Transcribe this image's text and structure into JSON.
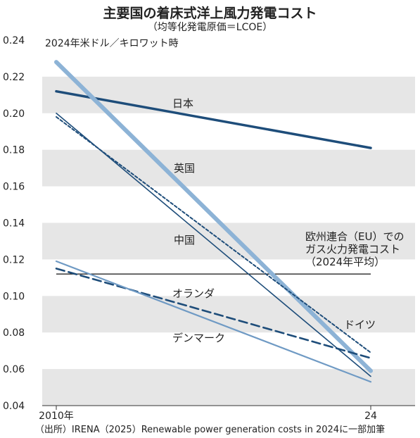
{
  "title": "主要国の着床式洋上風力発電コスト",
  "subtitle": "（均等化発電原価＝LCOE）",
  "source_note": "（出所）IRENA（2025）Renewable power generation costs in 2024に一部加筆",
  "chart_data": {
    "type": "line",
    "unit_label": "2024年米ドル／キロワット時",
    "x": [
      2010,
      2024
    ],
    "x_tick_labels": [
      "2010年",
      "24"
    ],
    "ylim": [
      0.04,
      0.24
    ],
    "y_ticks": [
      "0.04",
      "0.06",
      "0.08",
      "0.10",
      "0.12",
      "0.14",
      "0.16",
      "0.18",
      "0.20",
      "0.22",
      "0.24"
    ],
    "series": [
      {
        "name": "日本",
        "values": [
          0.212,
          0.181
        ],
        "color": "#1e4d7a",
        "style": "solid-thick"
      },
      {
        "name": "英国",
        "values": [
          0.228,
          0.059
        ],
        "color": "#8db3d6",
        "style": "solid-extra-thick"
      },
      {
        "name": "中国",
        "values": [
          0.2,
          0.056
        ],
        "color": "#1e4d7a",
        "style": "solid-thin"
      },
      {
        "name": "ドイツ",
        "values": [
          0.198,
          0.069
        ],
        "color": "#1e4d7a",
        "style": "dotted"
      },
      {
        "name": "オランダ",
        "values": [
          0.115,
          0.066
        ],
        "color": "#1e4d7a",
        "style": "dashed"
      },
      {
        "name": "デンマーク",
        "values": [
          0.119,
          0.053
        ],
        "color": "#6f9ac4",
        "style": "solid"
      }
    ],
    "reference_line": {
      "label_lines": [
        "欧州連合（EU）での",
        "ガス火力発電コスト",
        "（2024年平均）"
      ],
      "value": 0.112,
      "color": "#111111"
    },
    "background": "alternating gray bands"
  }
}
